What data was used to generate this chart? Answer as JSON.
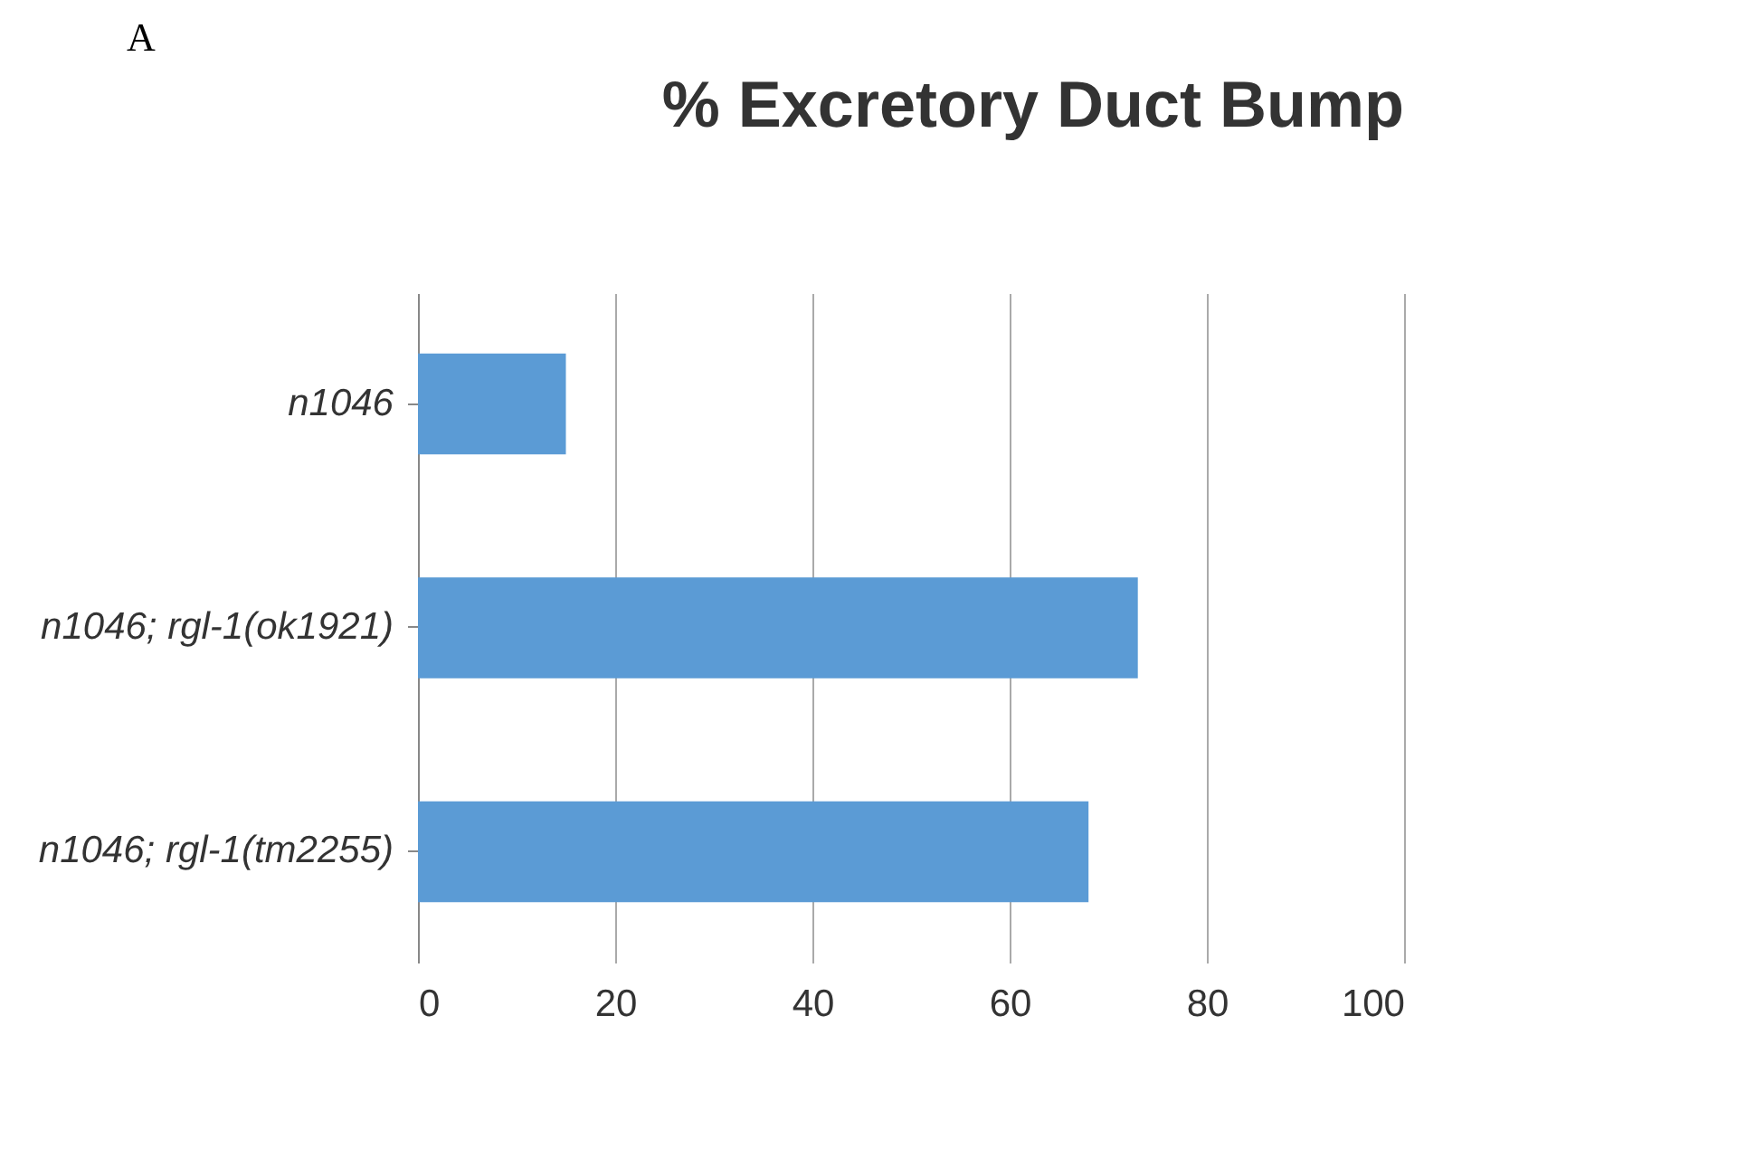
{
  "chart_data": {
    "type": "bar",
    "orientation": "horizontal",
    "title": "% Excretory Duct Bump",
    "categories": [
      "n1046",
      "n1046; rgl-1(ok1921)",
      "n1046; rgl-1(tm2255)"
    ],
    "values": [
      15,
      73,
      68
    ],
    "color": "#5b9bd5",
    "xlim": [
      0,
      100
    ],
    "xticks": [
      0,
      20,
      40,
      60,
      80,
      100
    ],
    "grid": "x",
    "annotations": [
      "A"
    ]
  }
}
